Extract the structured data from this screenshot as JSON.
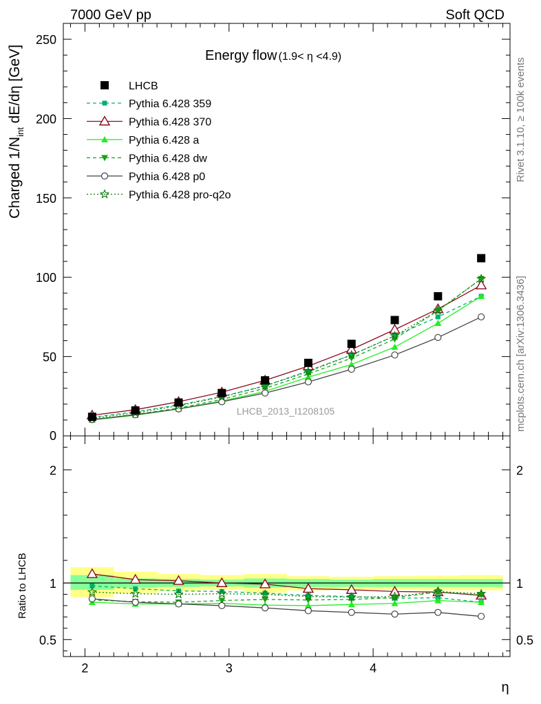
{
  "header": {
    "left": "7000 GeV pp",
    "right": "Soft QCD"
  },
  "side_text": {
    "rivet": "Rivet 3.1.10, ≥ 100k events",
    "mcplots": "mcplots.cern.ch [arXiv:1306.3436]"
  },
  "colors": {
    "data": "#000000",
    "p359": "#00b070",
    "p370": "#8b0a1e",
    "pa": "#22ee22",
    "pdw": "#16a316",
    "pp0": "#444444",
    "pq2o": "#0a7a0a",
    "band_outer": "#ffff88",
    "band_inner": "#88ff99"
  },
  "chart_data": {
    "type": "scatter",
    "title": "Energy flow",
    "title_range": "(1.9< η <4.9)",
    "watermark": "LHCB_2013_I1208105",
    "xlabel": "η",
    "ylabel": "Charged 1/N",
    "ylabel_sub": "int",
    "ylabel_tail": " dE/dη [GeV]",
    "ratio_ylabel": "Ratio to LHCB",
    "xlim": [
      1.85,
      4.95
    ],
    "ylim": [
      0,
      260
    ],
    "ratio_ylim": [
      0.35,
      2.3
    ],
    "x_ticks": [
      2,
      3,
      4
    ],
    "x_tick_labels": [
      "2",
      "3",
      "4"
    ],
    "y_ticks": [
      0,
      50,
      100,
      150,
      200,
      250
    ],
    "y_tick_labels": [
      "0",
      "50",
      "100",
      "150",
      "200",
      "250"
    ],
    "ratio_y_ticks": [
      0.5,
      1,
      2
    ],
    "ratio_y_tick_labels": [
      "0.5",
      "1",
      "2"
    ],
    "ratio_y_tick_labels_right": [
      "0.5",
      "1",
      "2"
    ],
    "x": [
      2.05,
      2.35,
      2.65,
      2.95,
      3.25,
      3.55,
      3.85,
      4.15,
      4.45,
      4.75
    ],
    "bin_edges": [
      1.9,
      2.2,
      2.5,
      2.8,
      3.1,
      3.4,
      3.7,
      4.0,
      4.3,
      4.6,
      4.9
    ],
    "band_outer": [
      [
        0.875,
        1.14
      ],
      [
        0.91,
        1.1
      ],
      [
        0.93,
        1.08
      ],
      [
        0.94,
        1.07
      ],
      [
        0.915,
        1.08
      ],
      [
        0.935,
        1.06
      ],
      [
        0.94,
        1.055
      ],
      [
        0.94,
        1.06
      ],
      [
        0.935,
        1.065
      ],
      [
        0.935,
        1.07
      ]
    ],
    "band_inner": [
      [
        0.94,
        1.07
      ],
      [
        0.96,
        1.04
      ],
      [
        0.965,
        1.035
      ],
      [
        0.97,
        1.03
      ],
      [
        0.96,
        1.04
      ],
      [
        0.965,
        1.035
      ],
      [
        0.965,
        1.03
      ],
      [
        0.965,
        1.035
      ],
      [
        0.965,
        1.035
      ],
      [
        0.965,
        1.035
      ]
    ],
    "data_series": {
      "name": "LHCB",
      "values": [
        12,
        16,
        21,
        27,
        35,
        46,
        58,
        73,
        88,
        112
      ]
    },
    "series": [
      {
        "name": "Pythia 6.428 359",
        "color_key": "p359",
        "dash": "5,4",
        "marker": "square-small",
        "values": [
          11.7,
          15.2,
          19.5,
          24.8,
          31.5,
          41,
          51,
          63,
          75,
          88
        ],
        "ratio": [
          0.975,
          0.95,
          0.93,
          0.925,
          0.91,
          0.89,
          0.88,
          0.865,
          0.87,
          0.83
        ]
      },
      {
        "name": "Pythia 6.428 370",
        "color_key": "p370",
        "dash": "",
        "marker": "triangle-open",
        "values": [
          13,
          16.5,
          21.5,
          27.5,
          35,
          44,
          54.5,
          67,
          80,
          95
        ],
        "ratio": [
          1.08,
          1.03,
          1.02,
          1.0,
          0.99,
          0.95,
          0.94,
          0.925,
          0.92,
          0.89
        ]
      },
      {
        "name": "Pythia 6.428 a",
        "color_key": "pa",
        "dash": "",
        "marker": "triangle-filled",
        "values": [
          10,
          13,
          17,
          22,
          28,
          37,
          45,
          56,
          71,
          88
        ],
        "ratio": [
          0.83,
          0.815,
          0.815,
          0.82,
          0.805,
          0.8,
          0.81,
          0.82,
          0.845,
          0.83
        ]
      },
      {
        "name": "Pythia 6.428 dw",
        "color_key": "pdw",
        "dash": "5,4",
        "marker": "triangle-down-filled",
        "values": [
          10.2,
          13.5,
          17.5,
          23,
          30,
          39,
          49,
          61,
          79,
          99
        ],
        "ratio": [
          0.85,
          0.835,
          0.83,
          0.845,
          0.855,
          0.85,
          0.855,
          0.87,
          0.92,
          0.895
        ]
      },
      {
        "name": "Pythia 6.428 p0",
        "color_key": "pp0",
        "dash": "",
        "marker": "circle-open",
        "values": [
          10.3,
          13.3,
          17,
          21.5,
          27,
          34,
          42,
          51,
          62,
          75
        ],
        "ratio": [
          0.86,
          0.83,
          0.815,
          0.8,
          0.78,
          0.755,
          0.74,
          0.725,
          0.74,
          0.705
        ]
      },
      {
        "name": "Pythia 6.428 pro-q2o",
        "color_key": "pq2o",
        "dash": "2,3",
        "marker": "star-open",
        "values": [
          11,
          14.5,
          19,
          24.5,
          31.5,
          40.5,
          51,
          63,
          79,
          99
        ],
        "ratio": [
          0.92,
          0.905,
          0.9,
          0.905,
          0.9,
          0.88,
          0.875,
          0.88,
          0.925,
          0.905
        ]
      }
    ]
  }
}
